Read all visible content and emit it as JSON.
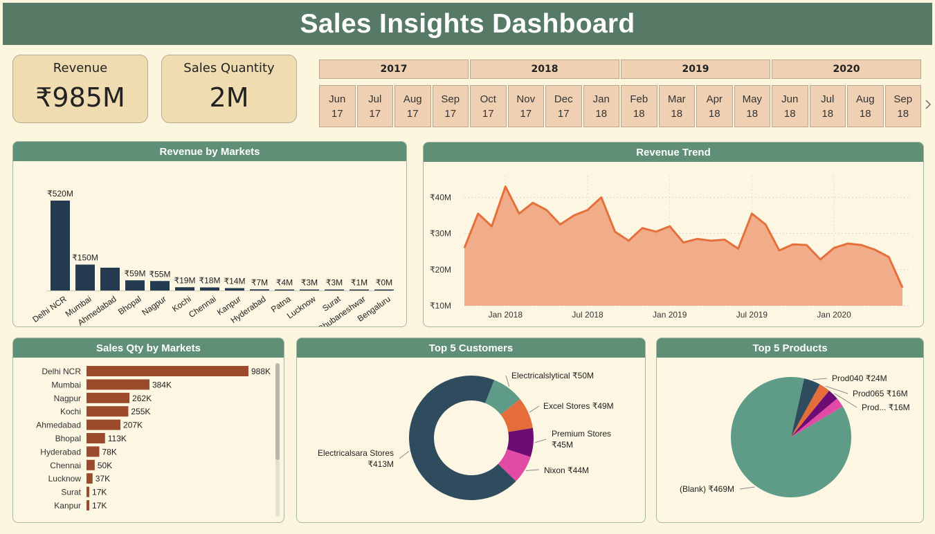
{
  "title": "Sales Insights Dashboard",
  "kpis": {
    "revenue": {
      "label": "Revenue",
      "value": "₹985M"
    },
    "quantity": {
      "label": "Sales Quantity",
      "value": "2M"
    }
  },
  "slicer": {
    "years": [
      "2017",
      "2018",
      "2019",
      "2020"
    ],
    "months": [
      {
        "m": "Jun",
        "y": "17"
      },
      {
        "m": "Jul",
        "y": "17"
      },
      {
        "m": "Aug",
        "y": "17"
      },
      {
        "m": "Sep",
        "y": "17"
      },
      {
        "m": "Oct",
        "y": "17"
      },
      {
        "m": "Nov",
        "y": "17"
      },
      {
        "m": "Dec",
        "y": "17"
      },
      {
        "m": "Jan",
        "y": "18"
      },
      {
        "m": "Feb",
        "y": "18"
      },
      {
        "m": "Mar",
        "y": "18"
      },
      {
        "m": "Apr",
        "y": "18"
      },
      {
        "m": "May",
        "y": "18"
      },
      {
        "m": "Jun",
        "y": "18"
      },
      {
        "m": "Jul",
        "y": "18"
      },
      {
        "m": "Aug",
        "y": "18"
      },
      {
        "m": "Sep",
        "y": "18"
      }
    ],
    "next_icon": "chevron-right-icon"
  },
  "panels": {
    "revenue_markets": "Revenue by Markets",
    "revenue_trend": "Revenue Trend",
    "qty_markets": "Sales Qty by Markets",
    "top_customers": "Top 5 Customers",
    "top_products": "Top 5 Products"
  },
  "colors": {
    "header": "#567a65",
    "panel_title": "#5f8f76",
    "bar_dark": "#253b4f",
    "bar_brown": "#9b4a2c",
    "trend_line": "#e5703b",
    "trend_fill": "#f1ad8a"
  },
  "chart_data": [
    {
      "type": "bar",
      "title": "Revenue by Markets",
      "categories": [
        "Delhi NCR",
        "Mumbai",
        "Ahmedabad",
        "Bhopal",
        "Nagpur",
        "Kochi",
        "Chennai",
        "Kanpur",
        "Hyderabad",
        "Patna",
        "Lucknow",
        "Surat",
        "Bhubaneshwar",
        "Bengaluru"
      ],
      "values": [
        520,
        150,
        132,
        59,
        55,
        19,
        18,
        14,
        7,
        4,
        3,
        3,
        1,
        0
      ],
      "labels": [
        "₹520M",
        "₹150M",
        "",
        "₹59M",
        "₹55M",
        "₹19M",
        "₹18M",
        "₹14M",
        "₹7M",
        "₹4M",
        "₹3M",
        "₹3M",
        "₹1M",
        "₹0M"
      ],
      "unit": "₹M"
    },
    {
      "type": "area",
      "title": "Revenue Trend",
      "x": [
        "2017-10",
        "2017-11",
        "2017-12",
        "2018-01",
        "2018-02",
        "2018-03",
        "2018-04",
        "2018-05",
        "2018-06",
        "2018-07",
        "2018-08",
        "2018-09",
        "2018-10",
        "2018-11",
        "2018-12",
        "2019-01",
        "2019-02",
        "2019-03",
        "2019-04",
        "2019-05",
        "2019-06",
        "2019-07",
        "2019-08",
        "2019-09",
        "2019-10",
        "2019-11",
        "2019-12",
        "2020-01",
        "2020-02",
        "2020-03",
        "2020-04",
        "2020-05",
        "2020-06"
      ],
      "values": [
        26,
        35.5,
        32,
        43,
        35.5,
        38.5,
        36.5,
        32.5,
        35,
        36.5,
        40,
        30.5,
        28,
        31.5,
        30.5,
        32,
        27.5,
        28.5,
        28,
        28.3,
        25.8,
        35.5,
        32.5,
        25.3,
        27,
        26.8,
        22.8,
        26,
        27.2,
        26.8,
        25.5,
        23.5,
        15
      ],
      "yticks": [
        "₹10M",
        "₹20M",
        "₹30M",
        "₹40M"
      ],
      "ytick_values": [
        10,
        20,
        30,
        40
      ],
      "ylim": [
        10,
        46
      ],
      "xticks": [
        "Jan 2018",
        "Jul 2018",
        "Jan 2019",
        "Jul 2019",
        "Jan 2020"
      ],
      "xtick_positions": [
        "2018-01",
        "2018-07",
        "2019-01",
        "2019-07",
        "2020-01"
      ],
      "grid": true
    },
    {
      "type": "bar",
      "orientation": "horizontal",
      "title": "Sales Qty by Markets",
      "categories": [
        "Delhi NCR",
        "Mumbai",
        "Nagpur",
        "Kochi",
        "Ahmedabad",
        "Bhopal",
        "Hyderabad",
        "Chennai",
        "Lucknow",
        "Surat",
        "Kanpur"
      ],
      "values": [
        988,
        384,
        262,
        255,
        207,
        113,
        78,
        50,
        37,
        17,
        17
      ],
      "labels": [
        "988K",
        "384K",
        "262K",
        "255K",
        "207K",
        "113K",
        "78K",
        "50K",
        "37K",
        "17K",
        "17K"
      ],
      "unit": "K"
    },
    {
      "type": "pie",
      "donut": true,
      "title": "Top 5 Customers",
      "labels": [
        "Electricalsara Stores",
        "Electricalslytical",
        "Excel Stores",
        "Premium Stores",
        "Nixon"
      ],
      "values": [
        413,
        50,
        49,
        45,
        44
      ],
      "value_labels": [
        "₹413M",
        "₹50M",
        "₹49M",
        "₹45M",
        "₹44M"
      ],
      "colors": [
        "#2f4c5e",
        "#5f9c88",
        "#e56d39",
        "#6d0c73",
        "#e14ba5"
      ]
    },
    {
      "type": "pie",
      "title": "Top 5 Products",
      "labels": [
        "(Blank)",
        "Prod040",
        "Prod065",
        "Prod...",
        "Prod..."
      ],
      "values": [
        469,
        24,
        16,
        16,
        14
      ],
      "value_labels": [
        "₹469M",
        "₹24M",
        "₹16M",
        "₹16M",
        ""
      ],
      "colors": [
        "#5f9c88",
        "#2f4c5e",
        "#e56d39",
        "#6d0c73",
        "#e14ba5"
      ]
    }
  ]
}
